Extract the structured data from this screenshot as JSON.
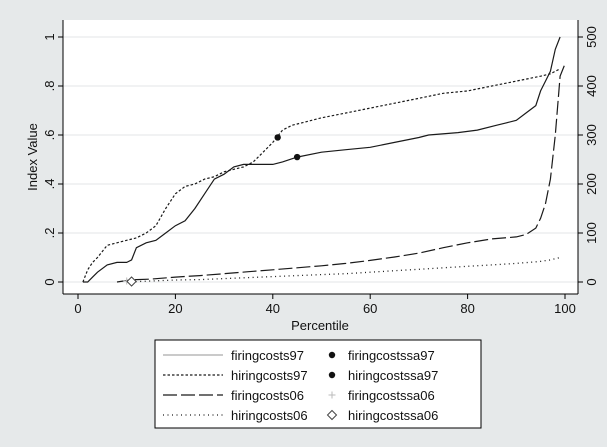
{
  "chart_data": {
    "type": "line",
    "xlabel": "Percentile",
    "ylabel": "Index Value",
    "xlim": [
      0,
      100
    ],
    "ylim": [
      0,
      1
    ],
    "ylim_right": [
      0,
      500
    ],
    "x_ticks": [
      "0",
      "20",
      "40",
      "60",
      "80",
      "100"
    ],
    "y_ticks": [
      "0",
      ".2",
      ".4",
      ".6",
      ".8",
      "1"
    ],
    "y_right_ticks": [
      "0",
      "100",
      "200",
      "300",
      "400",
      "500"
    ],
    "grid": "horizontal",
    "legend_position": "bottom",
    "series": [
      {
        "name": "firingcosts97",
        "axis": "left",
        "style": "solid",
        "points": [
          [
            1,
            0
          ],
          [
            2,
            0
          ],
          [
            3,
            0.02
          ],
          [
            4,
            0.04
          ],
          [
            6,
            0.07
          ],
          [
            8,
            0.08
          ],
          [
            10,
            0.08
          ],
          [
            11,
            0.09
          ],
          [
            12,
            0.14
          ],
          [
            14,
            0.16
          ],
          [
            16,
            0.17
          ],
          [
            18,
            0.2
          ],
          [
            20,
            0.23
          ],
          [
            22,
            0.25
          ],
          [
            24,
            0.3
          ],
          [
            26,
            0.36
          ],
          [
            28,
            0.42
          ],
          [
            30,
            0.44
          ],
          [
            32,
            0.47
          ],
          [
            34,
            0.48
          ],
          [
            36,
            0.48
          ],
          [
            38,
            0.48
          ],
          [
            40,
            0.48
          ],
          [
            42,
            0.49
          ],
          [
            45,
            0.51
          ],
          [
            50,
            0.53
          ],
          [
            55,
            0.54
          ],
          [
            60,
            0.55
          ],
          [
            65,
            0.57
          ],
          [
            70,
            0.59
          ],
          [
            72,
            0.6
          ],
          [
            78,
            0.61
          ],
          [
            82,
            0.62
          ],
          [
            86,
            0.64
          ],
          [
            88,
            0.65
          ],
          [
            90,
            0.66
          ],
          [
            92,
            0.69
          ],
          [
            94,
            0.72
          ],
          [
            95,
            0.78
          ],
          [
            96,
            0.82
          ],
          [
            97,
            0.86
          ],
          [
            98,
            0.95
          ],
          [
            99,
            1
          ]
        ]
      },
      {
        "name": "hiringcosts97",
        "axis": "left",
        "style": "short-dash",
        "points": [
          [
            1,
            0
          ],
          [
            2,
            0.05
          ],
          [
            3,
            0.08
          ],
          [
            4,
            0.1
          ],
          [
            6,
            0.15
          ],
          [
            8,
            0.16
          ],
          [
            10,
            0.17
          ],
          [
            12,
            0.18
          ],
          [
            14,
            0.2
          ],
          [
            16,
            0.23
          ],
          [
            18,
            0.3
          ],
          [
            20,
            0.36
          ],
          [
            22,
            0.39
          ],
          [
            24,
            0.4
          ],
          [
            26,
            0.42
          ],
          [
            28,
            0.43
          ],
          [
            30,
            0.45
          ],
          [
            32,
            0.46
          ],
          [
            34,
            0.47
          ],
          [
            36,
            0.49
          ],
          [
            38,
            0.53
          ],
          [
            40,
            0.57
          ],
          [
            42,
            0.62
          ],
          [
            44,
            0.64
          ],
          [
            46,
            0.65
          ],
          [
            50,
            0.67
          ],
          [
            55,
            0.69
          ],
          [
            60,
            0.71
          ],
          [
            65,
            0.73
          ],
          [
            70,
            0.75
          ],
          [
            75,
            0.77
          ],
          [
            80,
            0.78
          ],
          [
            85,
            0.8
          ],
          [
            90,
            0.82
          ],
          [
            95,
            0.84
          ],
          [
            97,
            0.85
          ],
          [
            99,
            0.87
          ]
        ]
      },
      {
        "name": "firingcosts06",
        "axis": "right",
        "style": "long-dash",
        "points": [
          [
            8,
            0
          ],
          [
            10,
            3
          ],
          [
            12,
            5
          ],
          [
            15,
            6
          ],
          [
            20,
            10
          ],
          [
            25,
            13
          ],
          [
            30,
            17
          ],
          [
            35,
            21
          ],
          [
            40,
            25
          ],
          [
            45,
            29
          ],
          [
            50,
            33
          ],
          [
            55,
            38
          ],
          [
            60,
            44
          ],
          [
            65,
            51
          ],
          [
            70,
            59
          ],
          [
            75,
            70
          ],
          [
            80,
            80
          ],
          [
            85,
            88
          ],
          [
            90,
            92
          ],
          [
            92,
            97
          ],
          [
            94,
            110
          ],
          [
            95,
            130
          ],
          [
            96,
            160
          ],
          [
            97,
            210
          ],
          [
            98,
            300
          ],
          [
            99,
            420
          ],
          [
            100,
            445
          ]
        ]
      },
      {
        "name": "hiringcosts06",
        "axis": "right",
        "style": "dotted",
        "points": [
          [
            10,
            0
          ],
          [
            15,
            2
          ],
          [
            20,
            4
          ],
          [
            25,
            5
          ],
          [
            30,
            7
          ],
          [
            35,
            9
          ],
          [
            40,
            11
          ],
          [
            45,
            13
          ],
          [
            50,
            15
          ],
          [
            55,
            17
          ],
          [
            60,
            20
          ],
          [
            65,
            23
          ],
          [
            70,
            26
          ],
          [
            75,
            29
          ],
          [
            80,
            32
          ],
          [
            85,
            35
          ],
          [
            90,
            38
          ],
          [
            95,
            42
          ],
          [
            97,
            45
          ],
          [
            99,
            50
          ]
        ]
      }
    ],
    "markers": [
      {
        "name": "firingcostssa97",
        "shape": "dot",
        "axis": "left",
        "x": 45,
        "y": 0.51
      },
      {
        "name": "hiringcostssa97",
        "shape": "dot",
        "axis": "left",
        "x": 41,
        "y": 0.59
      },
      {
        "name": "firingcostssa06",
        "shape": "plus",
        "axis": "right",
        "x": 10,
        "y": 2
      },
      {
        "name": "hiringcostssa06",
        "shape": "diamond",
        "axis": "right",
        "x": 11,
        "y": 1
      }
    ],
    "legend": [
      {
        "label": "firingcosts97",
        "symbol": "solid"
      },
      {
        "label": "firingcostssa97",
        "symbol": "dot"
      },
      {
        "label": "hiringcosts97",
        "symbol": "short-dash"
      },
      {
        "label": "hiringcostssa97",
        "symbol": "dot"
      },
      {
        "label": "firingcosts06",
        "symbol": "long-dash"
      },
      {
        "label": "firingcostssa06",
        "symbol": "plus"
      },
      {
        "label": "hiringcosts06",
        "symbol": "dotted"
      },
      {
        "label": "hiringcostssa06",
        "symbol": "diamond"
      }
    ]
  }
}
